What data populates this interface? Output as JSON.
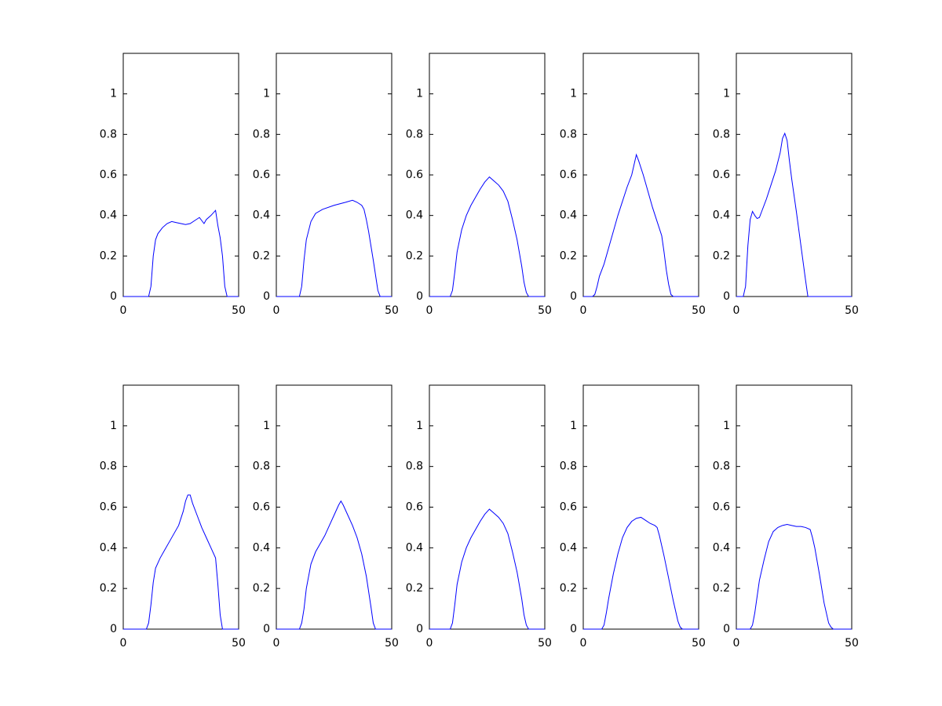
{
  "chart_data": [
    {
      "type": "line",
      "color": "#0000ff",
      "xlim": [
        0,
        50
      ],
      "ylim": [
        0,
        1.2
      ],
      "xticks": [
        0,
        50
      ],
      "yticks": [
        0,
        0.2,
        0.4,
        0.6,
        0.8,
        1
      ],
      "x": [
        0,
        11,
        12,
        13,
        14,
        15,
        17,
        19,
        21,
        23,
        25,
        27,
        29,
        31,
        33,
        34,
        35,
        36,
        38,
        40,
        41,
        42,
        43,
        44,
        45,
        50
      ],
      "values": [
        0,
        0,
        0.05,
        0.2,
        0.28,
        0.31,
        0.34,
        0.36,
        0.37,
        0.365,
        0.36,
        0.355,
        0.36,
        0.375,
        0.39,
        0.375,
        0.36,
        0.38,
        0.4,
        0.425,
        0.35,
        0.29,
        0.2,
        0.05,
        0,
        0
      ]
    },
    {
      "type": "line",
      "color": "#0000ff",
      "xlim": [
        0,
        50
      ],
      "ylim": [
        0,
        1.2
      ],
      "xticks": [
        0,
        50
      ],
      "yticks": [
        0,
        0.2,
        0.4,
        0.6,
        0.8,
        1
      ],
      "x": [
        0,
        10,
        11,
        12,
        13,
        15,
        17,
        20,
        25,
        30,
        33,
        35,
        37,
        38,
        39,
        40,
        42,
        44,
        45,
        50
      ],
      "values": [
        0,
        0,
        0.05,
        0.18,
        0.28,
        0.37,
        0.41,
        0.43,
        0.45,
        0.465,
        0.475,
        0.465,
        0.45,
        0.43,
        0.38,
        0.32,
        0.18,
        0.03,
        0,
        0
      ]
    },
    {
      "type": "line",
      "color": "#0000ff",
      "xlim": [
        0,
        50
      ],
      "ylim": [
        0,
        1.2
      ],
      "xticks": [
        0,
        50
      ],
      "yticks": [
        0,
        0.2,
        0.4,
        0.6,
        0.8,
        1
      ],
      "x": [
        0,
        9,
        10,
        11,
        12,
        14,
        16,
        18,
        20,
        22,
        24,
        26,
        28,
        30,
        32,
        34,
        36,
        38,
        40,
        41,
        42,
        43,
        50
      ],
      "values": [
        0,
        0,
        0.03,
        0.12,
        0.22,
        0.33,
        0.4,
        0.45,
        0.49,
        0.53,
        0.565,
        0.59,
        0.57,
        0.55,
        0.52,
        0.47,
        0.38,
        0.28,
        0.15,
        0.07,
        0.02,
        0,
        0
      ]
    },
    {
      "type": "line",
      "color": "#0000ff",
      "xlim": [
        0,
        50
      ],
      "ylim": [
        0,
        1.2
      ],
      "xticks": [
        0,
        50
      ],
      "yticks": [
        0,
        0.2,
        0.4,
        0.6,
        0.8,
        1
      ],
      "x": [
        0,
        4,
        5,
        6,
        7,
        9,
        11,
        13,
        15,
        17,
        19,
        21,
        22,
        23,
        24,
        26,
        28,
        30,
        32,
        34,
        35,
        36,
        37,
        38,
        39,
        50
      ],
      "values": [
        0,
        0,
        0.01,
        0.05,
        0.1,
        0.16,
        0.24,
        0.32,
        0.4,
        0.47,
        0.54,
        0.6,
        0.65,
        0.7,
        0.67,
        0.6,
        0.52,
        0.44,
        0.37,
        0.3,
        0.22,
        0.13,
        0.06,
        0.01,
        0,
        0
      ]
    },
    {
      "type": "line",
      "color": "#0000ff",
      "xlim": [
        0,
        50
      ],
      "ylim": [
        0,
        1.2
      ],
      "xticks": [
        0,
        50
      ],
      "yticks": [
        0,
        0.2,
        0.4,
        0.6,
        0.8,
        1
      ],
      "x": [
        0,
        3,
        4,
        5,
        6,
        7,
        8,
        9,
        10,
        11,
        13,
        15,
        17,
        19,
        20,
        21,
        22,
        23,
        24,
        26,
        28,
        30,
        31,
        50
      ],
      "values": [
        0,
        0,
        0.05,
        0.25,
        0.38,
        0.42,
        0.4,
        0.385,
        0.39,
        0.42,
        0.48,
        0.55,
        0.62,
        0.71,
        0.78,
        0.805,
        0.77,
        0.67,
        0.58,
        0.42,
        0.25,
        0.08,
        0,
        0
      ]
    },
    {
      "type": "line",
      "color": "#0000ff",
      "xlim": [
        0,
        50
      ],
      "ylim": [
        0,
        1.2
      ],
      "xticks": [
        0,
        50
      ],
      "yticks": [
        0,
        0.2,
        0.4,
        0.6,
        0.8,
        1
      ],
      "x": [
        0,
        10,
        11,
        12,
        13,
        14,
        16,
        18,
        20,
        22,
        24,
        26,
        27,
        28,
        29,
        30,
        32,
        34,
        36,
        38,
        40,
        41,
        42,
        43,
        50
      ],
      "values": [
        0,
        0,
        0.03,
        0.12,
        0.23,
        0.3,
        0.35,
        0.39,
        0.43,
        0.47,
        0.51,
        0.58,
        0.63,
        0.66,
        0.66,
        0.62,
        0.56,
        0.5,
        0.45,
        0.4,
        0.35,
        0.22,
        0.07,
        0,
        0
      ]
    },
    {
      "type": "line",
      "color": "#0000ff",
      "xlim": [
        0,
        50
      ],
      "ylim": [
        0,
        1.2
      ],
      "xticks": [
        0,
        50
      ],
      "yticks": [
        0,
        0.2,
        0.4,
        0.6,
        0.8,
        1
      ],
      "x": [
        0,
        10,
        11,
        12,
        13,
        15,
        17,
        19,
        21,
        23,
        25,
        27,
        28,
        29,
        31,
        33,
        35,
        37,
        39,
        41,
        42,
        43,
        50
      ],
      "values": [
        0,
        0,
        0.03,
        0.1,
        0.2,
        0.32,
        0.38,
        0.42,
        0.46,
        0.51,
        0.56,
        0.61,
        0.63,
        0.61,
        0.56,
        0.51,
        0.45,
        0.37,
        0.26,
        0.11,
        0.03,
        0,
        0
      ]
    },
    {
      "type": "line",
      "color": "#0000ff",
      "xlim": [
        0,
        50
      ],
      "ylim": [
        0,
        1.2
      ],
      "xticks": [
        0,
        50
      ],
      "yticks": [
        0,
        0.2,
        0.4,
        0.6,
        0.8,
        1
      ],
      "x": [
        0,
        9,
        10,
        11,
        12,
        14,
        16,
        18,
        20,
        22,
        24,
        26,
        28,
        30,
        32,
        34,
        36,
        38,
        40,
        41,
        42,
        43,
        50
      ],
      "values": [
        0,
        0,
        0.03,
        0.12,
        0.22,
        0.33,
        0.4,
        0.45,
        0.49,
        0.53,
        0.565,
        0.59,
        0.57,
        0.55,
        0.52,
        0.47,
        0.38,
        0.28,
        0.15,
        0.07,
        0.02,
        0,
        0
      ]
    },
    {
      "type": "line",
      "color": "#0000ff",
      "xlim": [
        0,
        50
      ],
      "ylim": [
        0,
        1.2
      ],
      "xticks": [
        0,
        50
      ],
      "yticks": [
        0,
        0.2,
        0.4,
        0.6,
        0.8,
        1
      ],
      "x": [
        0,
        8,
        9,
        10,
        11,
        13,
        15,
        17,
        19,
        21,
        23,
        25,
        27,
        29,
        31,
        32,
        33,
        35,
        37,
        39,
        41,
        42,
        43,
        50
      ],
      "values": [
        0,
        0,
        0.02,
        0.08,
        0.15,
        0.27,
        0.37,
        0.45,
        0.5,
        0.53,
        0.545,
        0.55,
        0.535,
        0.52,
        0.51,
        0.5,
        0.46,
        0.36,
        0.25,
        0.14,
        0.04,
        0.01,
        0,
        0
      ]
    },
    {
      "type": "line",
      "color": "#0000ff",
      "xlim": [
        0,
        50
      ],
      "ylim": [
        0,
        1.2
      ],
      "xticks": [
        0,
        50
      ],
      "yticks": [
        0,
        0.2,
        0.4,
        0.6,
        0.8,
        1
      ],
      "x": [
        0,
        6,
        7,
        8,
        9,
        10,
        12,
        14,
        16,
        18,
        20,
        22,
        24,
        26,
        28,
        30,
        32,
        33,
        34,
        36,
        38,
        40,
        41,
        42,
        50
      ],
      "values": [
        0,
        0,
        0.02,
        0.08,
        0.16,
        0.24,
        0.34,
        0.43,
        0.48,
        0.5,
        0.51,
        0.515,
        0.51,
        0.505,
        0.505,
        0.5,
        0.49,
        0.45,
        0.4,
        0.27,
        0.13,
        0.03,
        0.01,
        0,
        0
      ]
    }
  ]
}
